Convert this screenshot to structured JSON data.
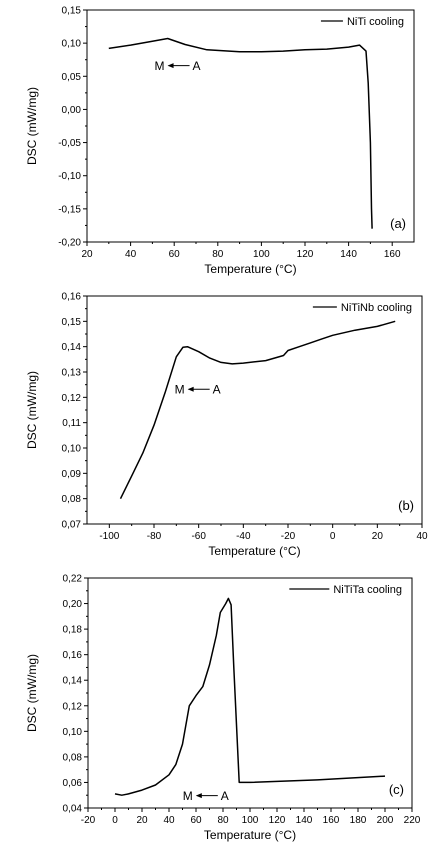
{
  "chart_data": [
    {
      "type": "line",
      "panel_label": "(a)",
      "xlabel": "Temperature (°C)",
      "ylabel": "DSC (mW/mg)",
      "xlim": [
        20,
        170
      ],
      "ylim": [
        -0.2,
        0.15
      ],
      "xticks": [
        20,
        40,
        60,
        80,
        100,
        120,
        140,
        160
      ],
      "xtick_labels": [
        "20",
        "40",
        "60",
        "80",
        "100",
        "120",
        "140",
        "160"
      ],
      "yticks": [
        -0.2,
        -0.15,
        -0.1,
        -0.05,
        0.0,
        0.05,
        0.1,
        0.15
      ],
      "ytick_labels": [
        "-0,20",
        "-0,15",
        "-0,10",
        "-0,05",
        "0,00",
        "0,05",
        "0,10",
        "0,15"
      ],
      "legend": "top-right",
      "grid": false,
      "annotation": {
        "start_label": "M",
        "end_label": "A",
        "x_at": 62,
        "y_at": 0.066
      },
      "series": [
        {
          "name": "NiTi cooling",
          "x": [
            30,
            40,
            50,
            57,
            65,
            75,
            90,
            100,
            110,
            120,
            130,
            140,
            145,
            148,
            149,
            150,
            150.5,
            150.8
          ],
          "y": [
            0.092,
            0.097,
            0.103,
            0.107,
            0.098,
            0.09,
            0.087,
            0.087,
            0.088,
            0.09,
            0.091,
            0.094,
            0.097,
            0.088,
            0.04,
            -0.05,
            -0.15,
            -0.18
          ]
        }
      ]
    },
    {
      "type": "line",
      "panel_label": "(b)",
      "xlabel": "Temperature (°C)",
      "ylabel": "DSC (mW/mg)",
      "xlim": [
        -110,
        40
      ],
      "ylim": [
        0.07,
        0.16
      ],
      "xticks": [
        -100,
        -80,
        -60,
        -40,
        -20,
        0,
        20,
        40
      ],
      "xtick_labels": [
        "-100",
        "-80",
        "-60",
        "-40",
        "-20",
        "0",
        "20",
        "40"
      ],
      "yticks": [
        0.07,
        0.08,
        0.09,
        0.1,
        0.11,
        0.12,
        0.13,
        0.14,
        0.15,
        0.16
      ],
      "ytick_labels": [
        "0,07",
        "0,08",
        "0,09",
        "0,10",
        "0,11",
        "0,12",
        "0,13",
        "0,14",
        "0,15",
        "0,16"
      ],
      "legend": "top-right",
      "grid": false,
      "annotation": {
        "start_label": "M",
        "end_label": "A",
        "x_at": -60,
        "y_at": 0.1232
      },
      "series": [
        {
          "name": "NiTiNb cooling",
          "x": [
            -95,
            -90,
            -85,
            -80,
            -75,
            -70,
            -67,
            -65,
            -60,
            -55,
            -50,
            -45,
            -40,
            -30,
            -22,
            -20,
            -15,
            -10,
            -5,
            0,
            10,
            20,
            28
          ],
          "y": [
            0.08,
            0.089,
            0.098,
            0.109,
            0.122,
            0.136,
            0.1398,
            0.14,
            0.138,
            0.1355,
            0.1338,
            0.1332,
            0.1335,
            0.1345,
            0.1365,
            0.1385,
            0.14,
            0.1415,
            0.143,
            0.1445,
            0.1465,
            0.148,
            0.15
          ]
        }
      ]
    },
    {
      "type": "line",
      "panel_label": "(c)",
      "xlabel": "Temperature (°C)",
      "ylabel": "DSC (mW/mg)",
      "xlim": [
        -20,
        220
      ],
      "ylim": [
        0.04,
        0.22
      ],
      "xticks": [
        -20,
        0,
        20,
        40,
        60,
        80,
        100,
        120,
        140,
        160,
        180,
        200,
        220
      ],
      "xtick_labels": [
        "-20",
        "0",
        "20",
        "40",
        "60",
        "80",
        "100",
        "120",
        "140",
        "160",
        "180",
        "200",
        "220"
      ],
      "yticks": [
        0.04,
        0.06,
        0.08,
        0.1,
        0.12,
        0.14,
        0.16,
        0.18,
        0.2,
        0.22
      ],
      "ytick_labels": [
        "0,04",
        "0,06",
        "0,08",
        "0,10",
        "0,12",
        "0,14",
        "0,16",
        "0,18",
        "0,20",
        "0,22"
      ],
      "legend": "top-right",
      "grid": false,
      "annotation": {
        "start_label": "M",
        "end_label": "A",
        "x_at": 68,
        "y_at": 0.0497
      },
      "series": [
        {
          "name": "NiTiTa cooling",
          "x": [
            0,
            5,
            10,
            20,
            30,
            40,
            45,
            50,
            55,
            60,
            65,
            70,
            75,
            78,
            82,
            84,
            86,
            88,
            92,
            100,
            150,
            200
          ],
          "y": [
            0.051,
            0.05,
            0.051,
            0.054,
            0.058,
            0.066,
            0.074,
            0.09,
            0.12,
            0.128,
            0.135,
            0.152,
            0.175,
            0.193,
            0.2,
            0.204,
            0.199,
            0.15,
            0.06,
            0.06,
            0.062,
            0.065
          ]
        }
      ]
    }
  ]
}
